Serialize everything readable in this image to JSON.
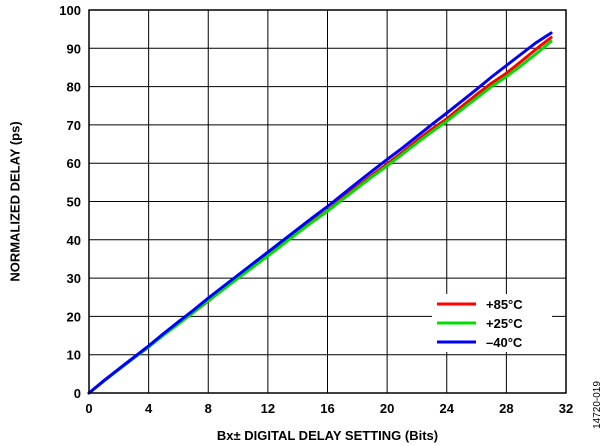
{
  "chart_data": {
    "type": "line",
    "xlabel": "Bx± DIGITAL DELAY SETTING (Bits)",
    "ylabel": "NORMALIZED DELAY (ps)",
    "xlim": [
      0,
      32
    ],
    "ylim": [
      0,
      100
    ],
    "xticks": [
      "0",
      "4",
      "8",
      "12",
      "16",
      "20",
      "24",
      "28",
      "32"
    ],
    "yticks": [
      "0",
      "10",
      "20",
      "30",
      "40",
      "50",
      "60",
      "70",
      "80",
      "90",
      "100"
    ],
    "grid": true,
    "legend_position": "bottom-right",
    "figure_id": "14720-019",
    "series": [
      {
        "name": "+85°C",
        "color": "#ff0000",
        "x": [
          0,
          1,
          2,
          3,
          4,
          5,
          6,
          7,
          8,
          9,
          10,
          11,
          12,
          13,
          14,
          15,
          16,
          17,
          18,
          19,
          20,
          21,
          22,
          23,
          24,
          25,
          26,
          27,
          28,
          29,
          30,
          31
        ],
        "y": [
          0,
          3.2,
          6.2,
          9.1,
          12,
          15.2,
          18.2,
          21,
          24,
          27.2,
          30.1,
          33.1,
          35.9,
          39,
          42.1,
          45,
          47.6,
          50.9,
          53.9,
          56.9,
          59.8,
          62.8,
          65.9,
          68.9,
          71.6,
          74.8,
          77.9,
          80.9,
          83.5,
          86.6,
          89.8,
          92.8
        ]
      },
      {
        "name": "+25°C",
        "color": "#00dd00",
        "x": [
          0,
          1,
          2,
          3,
          4,
          5,
          6,
          7,
          8,
          9,
          10,
          11,
          12,
          13,
          14,
          15,
          16,
          17,
          18,
          19,
          20,
          21,
          22,
          23,
          24,
          25,
          26,
          27,
          28,
          29,
          30,
          31
        ],
        "y": [
          0,
          3.1,
          6.1,
          9.1,
          12,
          15.1,
          18,
          21,
          24.1,
          27,
          30,
          32.9,
          35.8,
          38.8,
          41.8,
          44.7,
          47.5,
          50.5,
          53.5,
          56.5,
          59.3,
          62.3,
          65.3,
          68.2,
          71,
          74,
          77,
          80,
          82.6,
          85.5,
          88.6,
          91.8
        ]
      },
      {
        "name": "–40°C",
        "color": "#0000ff",
        "x": [
          0,
          1,
          2,
          3,
          4,
          5,
          6,
          7,
          8,
          9,
          10,
          11,
          12,
          13,
          14,
          15,
          16,
          17,
          18,
          19,
          20,
          21,
          22,
          23,
          24,
          25,
          26,
          27,
          28,
          29,
          30,
          31
        ],
        "y": [
          0,
          3.2,
          6.3,
          9.3,
          12.3,
          15.5,
          18.6,
          21.6,
          24.8,
          27.8,
          30.8,
          33.8,
          36.8,
          39.8,
          42.8,
          45.8,
          48.7,
          51.8,
          54.9,
          58,
          61,
          63.9,
          67,
          70.1,
          73.1,
          76.2,
          79.3,
          82.5,
          85.5,
          88.5,
          91.5,
          94
        ]
      }
    ]
  }
}
